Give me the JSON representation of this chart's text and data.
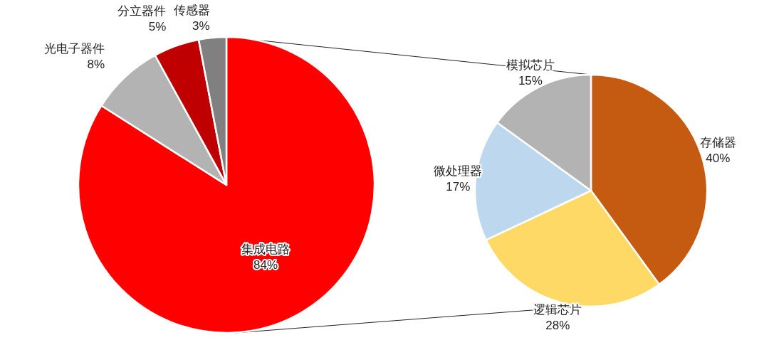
{
  "chart_data": [
    {
      "type": "pie",
      "categories": [
        "集成电路",
        "光电子器件",
        "分立器件",
        "传感器"
      ],
      "values": [
        84,
        8,
        5,
        3
      ],
      "colors": [
        "#ff0000",
        "#b3b3b3",
        "#c00000",
        "#808080"
      ],
      "value_labels": [
        "84%",
        "8%",
        "5%",
        "3%"
      ]
    },
    {
      "type": "pie",
      "categories": [
        "存储器",
        "逻辑芯片",
        "微处理器",
        "模拟芯片"
      ],
      "values": [
        40,
        28,
        17,
        15
      ],
      "colors": [
        "#c55a11",
        "#ffd966",
        "#bdd7ee",
        "#b3b3b3"
      ],
      "value_labels": [
        "40%",
        "28%",
        "17%",
        "15%"
      ]
    }
  ]
}
